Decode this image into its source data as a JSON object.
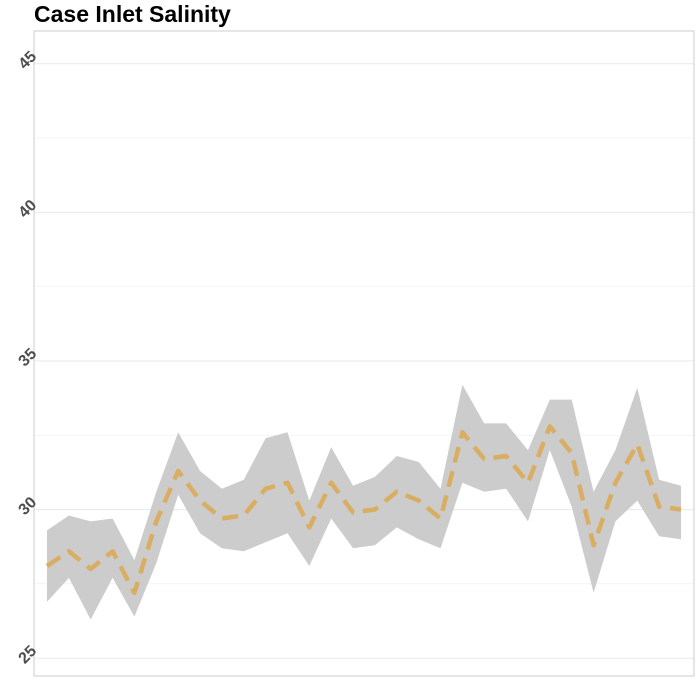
{
  "chart_data": {
    "type": "area",
    "title": "Case Inlet Salinity",
    "xlabel": "",
    "ylabel": "",
    "ylim": [
      24.4,
      46.1
    ],
    "yticks": [
      25,
      30,
      35,
      40,
      45
    ],
    "grid": true,
    "colors": {
      "band": "#cccccc",
      "line": "#d9ae63",
      "grid": "#ebebeb",
      "border": "#cccccc"
    },
    "x": [
      1,
      2,
      3,
      4,
      5,
      6,
      7,
      8,
      9,
      10,
      11,
      12,
      13,
      14,
      15,
      16,
      17,
      18,
      19,
      20,
      21,
      22,
      23,
      24,
      25,
      26,
      27,
      28,
      29,
      30
    ],
    "series": [
      {
        "role": "band_upper",
        "values": [
          29.3,
          29.8,
          29.6,
          29.7,
          28.3,
          30.6,
          32.6,
          31.3,
          30.7,
          31.0,
          32.4,
          32.6,
          30.3,
          32.1,
          30.8,
          31.1,
          31.8,
          31.6,
          30.7,
          34.2,
          32.9,
          32.9,
          32.0,
          33.7,
          33.7,
          30.6,
          32.0,
          34.1,
          31.0,
          30.8
        ]
      },
      {
        "role": "band_lower",
        "values": [
          26.9,
          27.7,
          26.3,
          27.7,
          26.4,
          28.2,
          30.5,
          29.2,
          28.7,
          28.6,
          28.9,
          29.2,
          28.1,
          29.7,
          28.7,
          28.8,
          29.4,
          29.0,
          28.7,
          30.9,
          30.6,
          30.7,
          29.6,
          32.0,
          30.1,
          27.2,
          29.6,
          30.3,
          29.1,
          29.0
        ]
      },
      {
        "role": "mean",
        "values": [
          28.1,
          28.6,
          28.0,
          28.6,
          27.2,
          29.6,
          31.3,
          30.3,
          29.7,
          29.8,
          30.7,
          30.9,
          29.4,
          30.9,
          29.9,
          30.0,
          30.6,
          30.3,
          29.7,
          32.6,
          31.7,
          31.8,
          30.9,
          32.8,
          31.9,
          28.8,
          30.9,
          32.2,
          30.1,
          30.0
        ]
      }
    ]
  }
}
